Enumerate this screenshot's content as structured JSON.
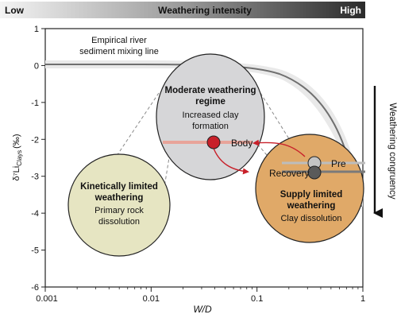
{
  "header": {
    "low_label": "Low",
    "title": "Weathering intensity",
    "high_label": "High",
    "gradient_colors": [
      "#f2f2f2",
      "#2b2b2b"
    ]
  },
  "axes": {
    "y_label_main": "δ⁷Li",
    "y_label_sub": "Clays",
    "y_label_unit": "(‰)",
    "x_label": "W/D",
    "y_ticks": [
      "1",
      "0",
      "-1",
      "-2",
      "-3",
      "-4",
      "-5",
      "-6"
    ],
    "x_ticks": [
      "0.001",
      "0.01",
      "0.1",
      "1"
    ],
    "x_range": [
      0.001,
      1
    ],
    "y_range": [
      -6,
      1
    ]
  },
  "mixing_line": {
    "label_line1": "Empirical river",
    "label_line2": "sediment mixing line"
  },
  "regimes": {
    "moderate": {
      "title_line1": "Moderate weathering",
      "title_line2": "regime",
      "desc_line1": "Increased clay",
      "desc_line2": "formation",
      "color": "#d6d6d8"
    },
    "kinetic": {
      "title_line1": "Kinetically limited",
      "title_line2": "weathering",
      "desc_line1": "Primary rock",
      "desc_line2": "dissolution",
      "color": "#e6e5c2"
    },
    "supply": {
      "title_line1": "Supply limited",
      "title_line2": "weathering",
      "desc_line1": "Clay dissolution",
      "color": "#e0a968"
    }
  },
  "points": {
    "body_label": "Body",
    "pre_label": "Pre",
    "recovery_label": "Recovery",
    "body_color": "#c8202a",
    "pre_color": "#c4c4c4",
    "recovery_color": "#5a5a5a"
  },
  "congruency": {
    "label": "Weathering congruency"
  },
  "colors": {
    "arrow": "#c8202a",
    "band": "#e8a49a"
  }
}
